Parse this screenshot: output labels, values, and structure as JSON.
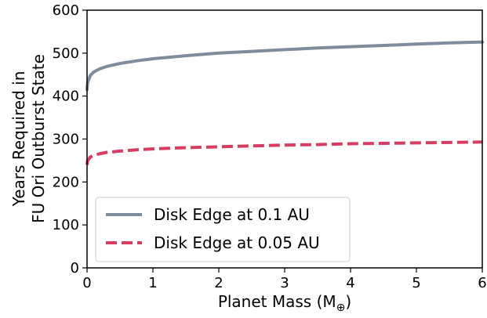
{
  "chart_data": {
    "type": "line",
    "title": "",
    "xlabel": "Planet Mass (M",
    "xlabel_subscript": "⊕",
    "xlabel_suffix": ")",
    "ylabel_lines": [
      "Years Required in",
      "FU Ori Outburst State"
    ],
    "xlim": [
      0,
      6
    ],
    "ylim": [
      0,
      600
    ],
    "xticks": [
      0,
      1,
      2,
      3,
      4,
      5,
      6
    ],
    "yticks": [
      0,
      100,
      200,
      300,
      400,
      500,
      600
    ],
    "grid": false,
    "legend_position": "lower-left",
    "series": [
      {
        "name": "Disk Edge at 0.1 AU",
        "color": "#7f8c9b",
        "style": "solid",
        "x": [
          0.0,
          0.01,
          0.05,
          0.1,
          0.2,
          0.3,
          0.5,
          0.75,
          1.0,
          1.5,
          2.0,
          2.5,
          3.0,
          3.5,
          4.0,
          4.5,
          5.0,
          5.5,
          6.0
        ],
        "y": [
          415,
          432,
          448,
          456,
          464,
          469,
          476,
          482,
          487,
          494,
          500,
          504,
          508,
          512,
          515,
          518,
          521,
          524,
          526
        ]
      },
      {
        "name": "Disk Edge at 0.05 AU",
        "color": "#d63d61",
        "style": "dashed",
        "x": [
          0.0,
          0.01,
          0.05,
          0.1,
          0.2,
          0.3,
          0.5,
          0.75,
          1.0,
          1.5,
          2.0,
          2.5,
          3.0,
          3.5,
          4.0,
          4.5,
          5.0,
          5.5,
          6.0
        ],
        "y": [
          240,
          250,
          258,
          262,
          266,
          269,
          272,
          275,
          277,
          280,
          282,
          284,
          286,
          287,
          289,
          290,
          291,
          292,
          293
        ]
      }
    ]
  }
}
